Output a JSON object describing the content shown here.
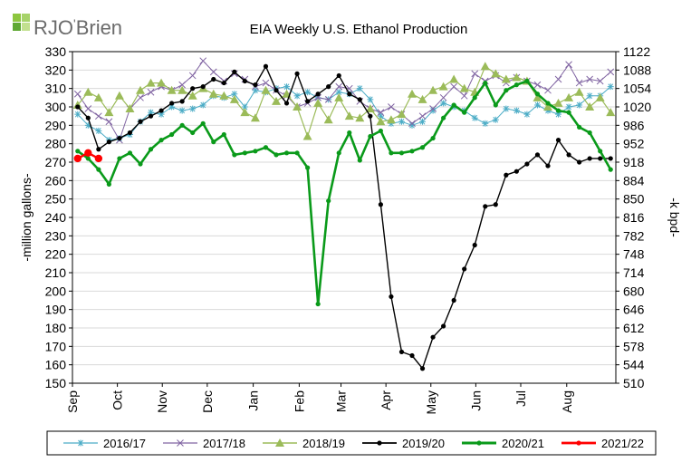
{
  "logo": {
    "brand": "RJO",
    "brand_suffix": "Brien"
  },
  "chart_data": {
    "type": "line",
    "title": "EIA Weekly U.S. Ethanol Production",
    "ylabel": "-million gallons-",
    "y2label": "-k bpd-",
    "ylim": [
      150,
      330
    ],
    "y2lim": [
      510,
      1122
    ],
    "yticks": [
      150,
      160,
      170,
      180,
      190,
      200,
      210,
      220,
      230,
      240,
      250,
      260,
      270,
      280,
      290,
      300,
      310,
      320,
      330
    ],
    "y2ticks": [
      510,
      544,
      578,
      612,
      646,
      680,
      714,
      748,
      782,
      816,
      850,
      884,
      918,
      952,
      986,
      1020,
      1054,
      1088,
      1122
    ],
    "x_weeks": 52,
    "months": [
      {
        "label": "Sep",
        "week": 0
      },
      {
        "label": "Oct",
        "week": 4.3
      },
      {
        "label": "Nov",
        "week": 8.6
      },
      {
        "label": "Dec",
        "week": 12.9
      },
      {
        "label": "Jan",
        "week": 17.3
      },
      {
        "label": "Feb",
        "week": 21.7
      },
      {
        "label": "Mar",
        "week": 25.7
      },
      {
        "label": "Apr",
        "week": 30
      },
      {
        "label": "May",
        "week": 34.3
      },
      {
        "label": "Jun",
        "week": 38.6
      },
      {
        "label": "Jul",
        "week": 42.9
      },
      {
        "label": "Aug",
        "week": 47.3
      }
    ],
    "series": [
      {
        "name": "2016/17",
        "color": "#4bacc6",
        "marker": "asterisk",
        "values": [
          296,
          290,
          287,
          282,
          283,
          285,
          292,
          297,
          296,
          300,
          298,
          299,
          301,
          306,
          305,
          307,
          300,
          309,
          308,
          310,
          311,
          306,
          308,
          305,
          304,
          308,
          307,
          310,
          304,
          295,
          291,
          292,
          290,
          292,
          298,
          302,
          300,
          298,
          294,
          291,
          293,
          299,
          298,
          296,
          301,
          298,
          296,
          300,
          301,
          306,
          306,
          311
        ]
      },
      {
        "name": "2017/18",
        "color": "#8064a2",
        "marker": "x",
        "values": [
          307,
          299,
          295,
          292,
          282,
          299,
          305,
          308,
          311,
          309,
          312,
          317,
          325,
          319,
          314,
          318,
          315,
          311,
          313,
          309,
          306,
          300,
          302,
          305,
          304,
          311,
          310,
          303,
          299,
          297,
          300,
          296,
          291,
          295,
          299,
          305,
          311,
          306,
          318,
          314,
          317,
          313,
          316,
          314,
          312,
          309,
          315,
          323,
          313,
          315,
          314,
          319
        ]
      },
      {
        "name": "2018/19",
        "color": "#9bbb59",
        "marker": "triangle",
        "values": [
          301,
          308,
          305,
          297,
          306,
          299,
          309,
          313,
          313,
          309,
          309,
          306,
          310,
          307,
          306,
          304,
          297,
          294,
          309,
          303,
          307,
          300,
          284,
          302,
          293,
          305,
          295,
          294,
          299,
          292,
          293,
          296,
          307,
          304,
          309,
          311,
          315,
          310,
          308,
          322,
          318,
          315,
          316,
          314,
          305,
          300,
          302,
          305,
          308,
          300,
          305,
          297
        ]
      },
      {
        "name": "2019/20",
        "color": "#000000",
        "marker": "dot",
        "values": [
          300,
          294,
          277,
          281,
          283,
          286,
          292,
          295,
          298,
          302,
          303,
          310,
          311,
          315,
          313,
          319,
          314,
          312,
          322,
          309,
          302,
          318,
          303,
          307,
          311,
          317,
          307,
          304,
          295,
          247,
          197,
          167,
          165,
          158,
          175,
          181,
          195,
          212,
          225,
          246,
          247,
          263,
          265,
          269,
          274,
          268,
          282,
          274,
          270,
          272,
          272,
          272
        ]
      },
      {
        "name": "2020/21",
        "color": "#0a9a1a",
        "marker": "dot",
        "values": [
          276,
          272,
          266,
          258,
          272,
          275,
          269,
          277,
          282,
          285,
          290,
          286,
          291,
          281,
          285,
          274,
          275,
          276,
          278,
          274,
          275,
          275,
          267,
          193,
          249,
          275,
          286,
          271,
          284,
          287,
          275,
          275,
          276,
          278,
          283,
          294,
          301,
          297,
          305,
          313,
          301,
          309,
          312,
          314,
          307,
          302,
          298,
          297,
          289,
          286,
          276,
          266
        ]
      },
      {
        "name": "2021/22",
        "color": "#ff0000",
        "marker": "dot",
        "values": [
          272,
          275,
          272
        ]
      }
    ]
  }
}
